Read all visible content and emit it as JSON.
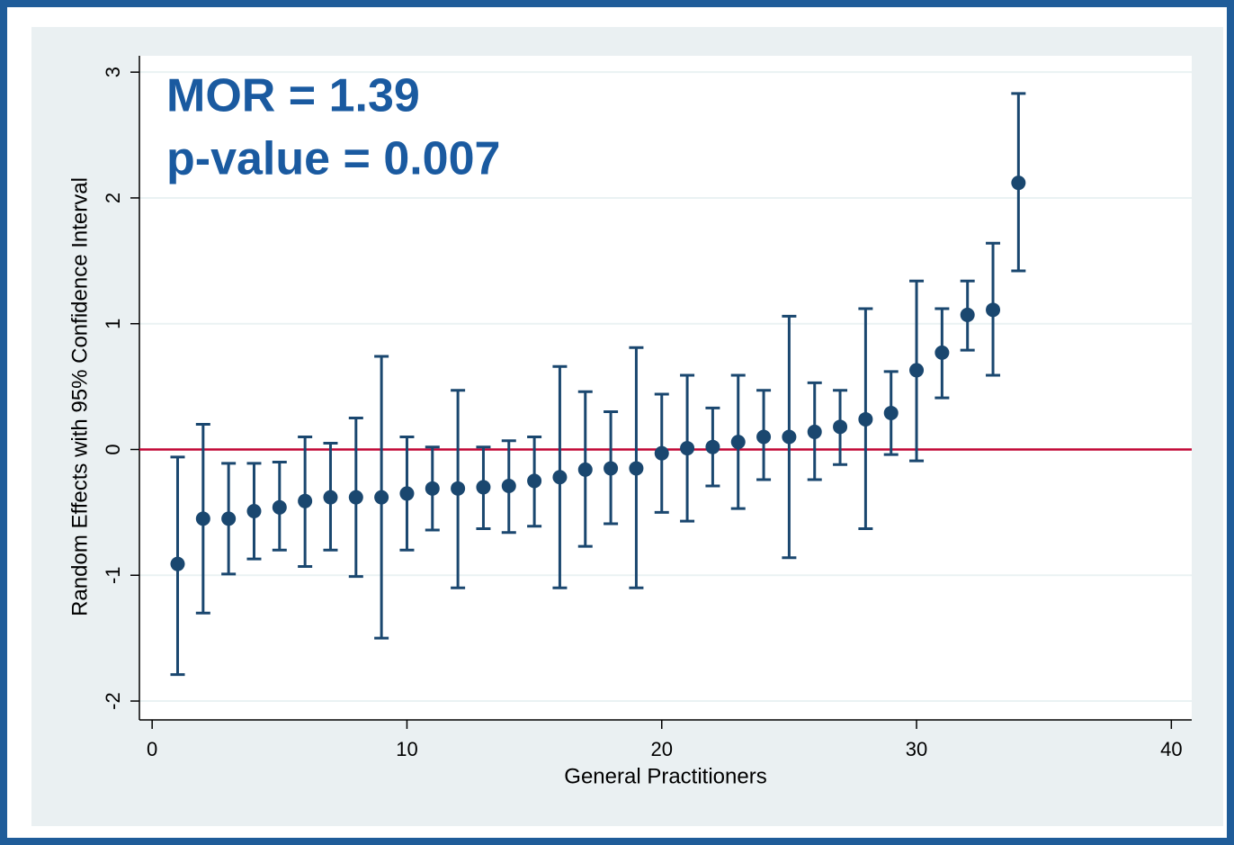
{
  "chart_data": {
    "type": "errorbar",
    "annotations": [
      "MOR = 1.39",
      "p-value = 0.007"
    ],
    "xlabel": "General Practitioners",
    "ylabel": "Random Effects with 95% Confidence Interval",
    "x": [
      1,
      2,
      3,
      4,
      5,
      6,
      7,
      8,
      9,
      10,
      11,
      12,
      13,
      14,
      15,
      16,
      17,
      18,
      19,
      20,
      21,
      22,
      23,
      24,
      25,
      26,
      27,
      28,
      29,
      30,
      31,
      32,
      33,
      34
    ],
    "values": [
      -0.91,
      -0.55,
      -0.55,
      -0.49,
      -0.46,
      -0.41,
      -0.38,
      -0.38,
      -0.38,
      -0.35,
      -0.31,
      -0.31,
      -0.3,
      -0.29,
      -0.25,
      -0.22,
      -0.16,
      -0.15,
      -0.15,
      -0.03,
      0.01,
      0.02,
      0.06,
      0.1,
      0.1,
      0.14,
      0.18,
      0.24,
      0.29,
      0.63,
      0.77,
      1.07,
      1.11,
      2.12
    ],
    "lower": [
      -1.79,
      -1.3,
      -0.99,
      -0.87,
      -0.8,
      -0.93,
      -0.8,
      -1.01,
      -1.5,
      -0.8,
      -0.64,
      -1.1,
      -0.63,
      -0.66,
      -0.61,
      -1.1,
      -0.77,
      -0.59,
      -1.1,
      -0.5,
      -0.57,
      -0.29,
      -0.47,
      -0.24,
      -0.86,
      -0.24,
      -0.12,
      -0.63,
      -0.04,
      -0.09,
      0.41,
      0.79,
      0.59,
      1.42
    ],
    "upper": [
      -0.06,
      0.2,
      -0.11,
      -0.11,
      -0.1,
      0.1,
      0.05,
      0.25,
      0.74,
      0.1,
      0.02,
      0.47,
      0.02,
      0.07,
      0.1,
      0.66,
      0.46,
      0.3,
      0.81,
      0.44,
      0.59,
      0.33,
      0.59,
      0.47,
      1.06,
      0.53,
      0.47,
      1.12,
      0.62,
      1.34,
      1.12,
      1.34,
      1.64,
      2.83
    ],
    "color": "#1a476f",
    "reference_line": 0,
    "reference_color": "#c10534",
    "xlim": [
      -0.5,
      40.8
    ],
    "xticks": [
      0,
      10,
      20,
      30,
      40
    ],
    "ylim": [
      -2.15,
      3.13
    ],
    "yticks": [
      -2,
      -1,
      0,
      1,
      2,
      3
    ],
    "grid": true
  }
}
